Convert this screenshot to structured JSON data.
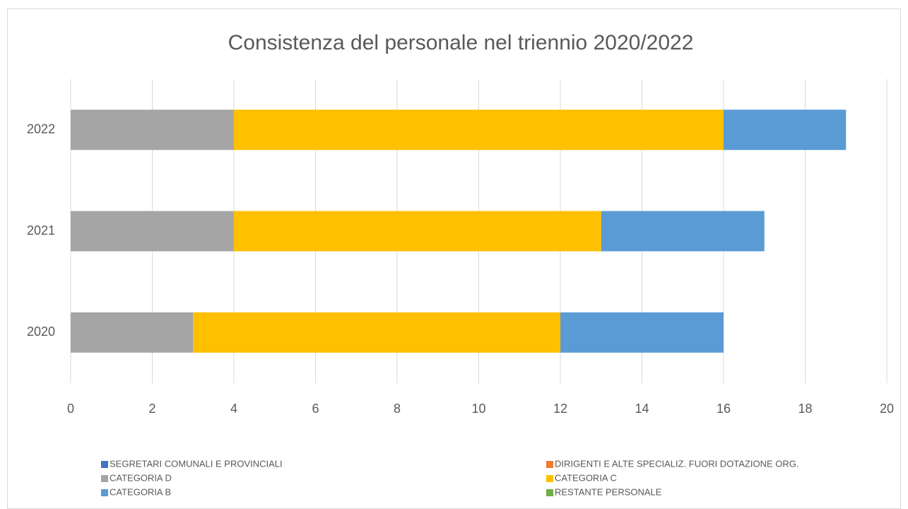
{
  "chart_data": {
    "type": "stacked_barh",
    "title": "Consistenza del personale nel triennio 2020/2022",
    "categories": [
      "2020",
      "2021",
      "2022"
    ],
    "series": [
      {
        "name": "SEGRETARI COMUNALI E PROVINCIALI",
        "color": "#4472c4",
        "values": [
          0,
          0,
          0
        ]
      },
      {
        "name": "DIRIGENTI E ALTE SPECIALIZ. FUORI DOTAZIONE ORG.",
        "color": "#ed7d31",
        "values": [
          0,
          0,
          0
        ]
      },
      {
        "name": "CATEGORIA D",
        "color": "#a5a5a5",
        "values": [
          3,
          4,
          4
        ]
      },
      {
        "name": "CATEGORIA C",
        "color": "#ffc000",
        "values": [
          9,
          9,
          12
        ]
      },
      {
        "name": "CATEGORIA B",
        "color": "#5b9bd5",
        "values": [
          4,
          4,
          3
        ]
      },
      {
        "name": "RESTANTE PERSONALE",
        "color": "#70ad47",
        "values": [
          0,
          0,
          0
        ]
      }
    ],
    "xlim": [
      0,
      20
    ],
    "xticks": [
      0,
      2,
      4,
      6,
      8,
      10,
      12,
      14,
      16,
      18,
      20
    ],
    "grid": true,
    "legend": "bottom"
  }
}
